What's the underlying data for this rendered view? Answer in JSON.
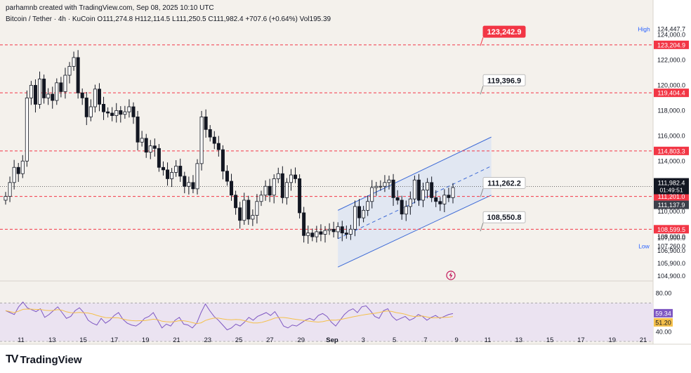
{
  "header": {
    "credit": "parhamnb created with TradingView.com, Sep 08, 2025 10:10 UTC",
    "symbol_line": "Bitcoin / Tether · 4h · KuCoin  O111,274.8  H112,114.5  L111,250.5  C111,982.4  +707.6 (+0.64%)  Vol195.39"
  },
  "brand": {
    "name": "TradingView",
    "logo": "TV"
  },
  "chart_data": {
    "type": "candlestick",
    "ylim": [
      104500,
      125200
    ],
    "price_ticks": [
      124000,
      122000,
      120000,
      118000,
      116000,
      114000,
      112000,
      110000,
      108000,
      107900,
      106900,
      105900,
      104900
    ],
    "tick_labels": [
      "124,000.0",
      "122,000.0",
      "120,000.0",
      "118,000.0",
      "116,000.0",
      "114,000.0",
      "112,000.0",
      "110,000.0",
      "108,000.0",
      "107,900.0",
      "106,900.0",
      "105,900.0",
      "104,900.0"
    ],
    "x_labels": [
      "11",
      "13",
      "15",
      "17",
      "19",
      "21",
      "23",
      "25",
      "27",
      "29",
      "Sep",
      "3",
      "5",
      "7",
      "9",
      "11",
      "13",
      "15",
      "17",
      "19",
      "21"
    ],
    "close_path": [
      111200,
      112300,
      113500,
      113000,
      114000,
      119000,
      120000,
      118500,
      120500,
      119000,
      119300,
      118800,
      120200,
      119500,
      120800,
      121500,
      122200,
      119400,
      119000,
      117500,
      118300,
      119700,
      118500,
      117900,
      117800,
      117600,
      118000,
      117700,
      117900,
      118300,
      117500,
      115500,
      115800,
      114700,
      115200,
      115000,
      113500,
      113300,
      112600,
      113100,
      113600,
      112800,
      112000,
      112300,
      111800,
      113800,
      117500,
      116500,
      115900,
      115400,
      114900,
      113200,
      112400,
      111300,
      110300,
      109300,
      110900,
      109400,
      109700,
      110800,
      111300,
      112000,
      111300,
      112600,
      113000,
      111100,
      112300,
      112900,
      112600,
      109900,
      108100,
      108300,
      108000,
      108400,
      108200,
      108500,
      108600,
      108400,
      108800,
      108300,
      108200,
      108600,
      110400,
      109500,
      110100,
      110800,
      111900,
      112000,
      112000,
      112300,
      112500,
      111100,
      110900,
      109800,
      110400,
      111000,
      112500,
      110900,
      111700,
      112300,
      111100,
      110800,
      110600,
      111300,
      111100,
      111900
    ],
    "levels": [
      {
        "value": 123204.9,
        "label": "123,204.9"
      },
      {
        "value": 119404.4,
        "label": "119,404.4"
      },
      {
        "value": 114803.3,
        "label": "114,803.3"
      },
      {
        "value": 111201.0,
        "label": "111,201.0"
      },
      {
        "value": 108599.5,
        "label": "108,599.5"
      }
    ],
    "callouts": [
      {
        "value": 123242.9,
        "label": "123,242.9",
        "highlight": true
      },
      {
        "value": 119396.9,
        "label": "119,396.9",
        "highlight": false
      },
      {
        "value": 111262.2,
        "label": "111,262.2",
        "highlight": false
      },
      {
        "value": 108550.8,
        "label": "108,550.8",
        "highlight": false
      }
    ],
    "high": {
      "label": "High",
      "value": "124,447.7"
    },
    "low": {
      "label": "Low",
      "value": "107,260.0"
    },
    "last_price": {
      "value": "111,982.4",
      "countdown": "01:49:51"
    },
    "extra_tag": {
      "value": "111,137.9"
    },
    "rsi": {
      "ylim": [
        30,
        90
      ],
      "upper": 70,
      "lower": 30,
      "ticks": [
        "80.00",
        "40.00"
      ],
      "rsi_value": "59.34",
      "ma_value": "51.20",
      "rsi_path": [
        62,
        60,
        58,
        66,
        71,
        65,
        63,
        61,
        64,
        55,
        58,
        62,
        66,
        60,
        54,
        56,
        62,
        65,
        60,
        52,
        49,
        47,
        54,
        49,
        52,
        57,
        60,
        53,
        49,
        47,
        46,
        49,
        54,
        56,
        60,
        52,
        44,
        48,
        46,
        52,
        55,
        48,
        47,
        44,
        49,
        60,
        69,
        62,
        56,
        52,
        47,
        42,
        44,
        48,
        46,
        50,
        55,
        52,
        56,
        58,
        60,
        57,
        61,
        54,
        46,
        44,
        47,
        46,
        49,
        52,
        54,
        52,
        57,
        59,
        56,
        50,
        46,
        52,
        58,
        62,
        64,
        60,
        66,
        67,
        62,
        56,
        54,
        62,
        64,
        56,
        52,
        54,
        56,
        52,
        54,
        58,
        56,
        52,
        55,
        57,
        54,
        56,
        58,
        59
      ]
    }
  },
  "colors": {
    "bg_main": "#f4f1ec",
    "candle": "#131722",
    "level": "#f23645",
    "channel": "#3d6ad6",
    "channel_fill": "#dde5f3",
    "rsi_line": "#7e57c2",
    "rsi_ma": "#f5c04a",
    "rsi_band": "#ebe3f1"
  }
}
